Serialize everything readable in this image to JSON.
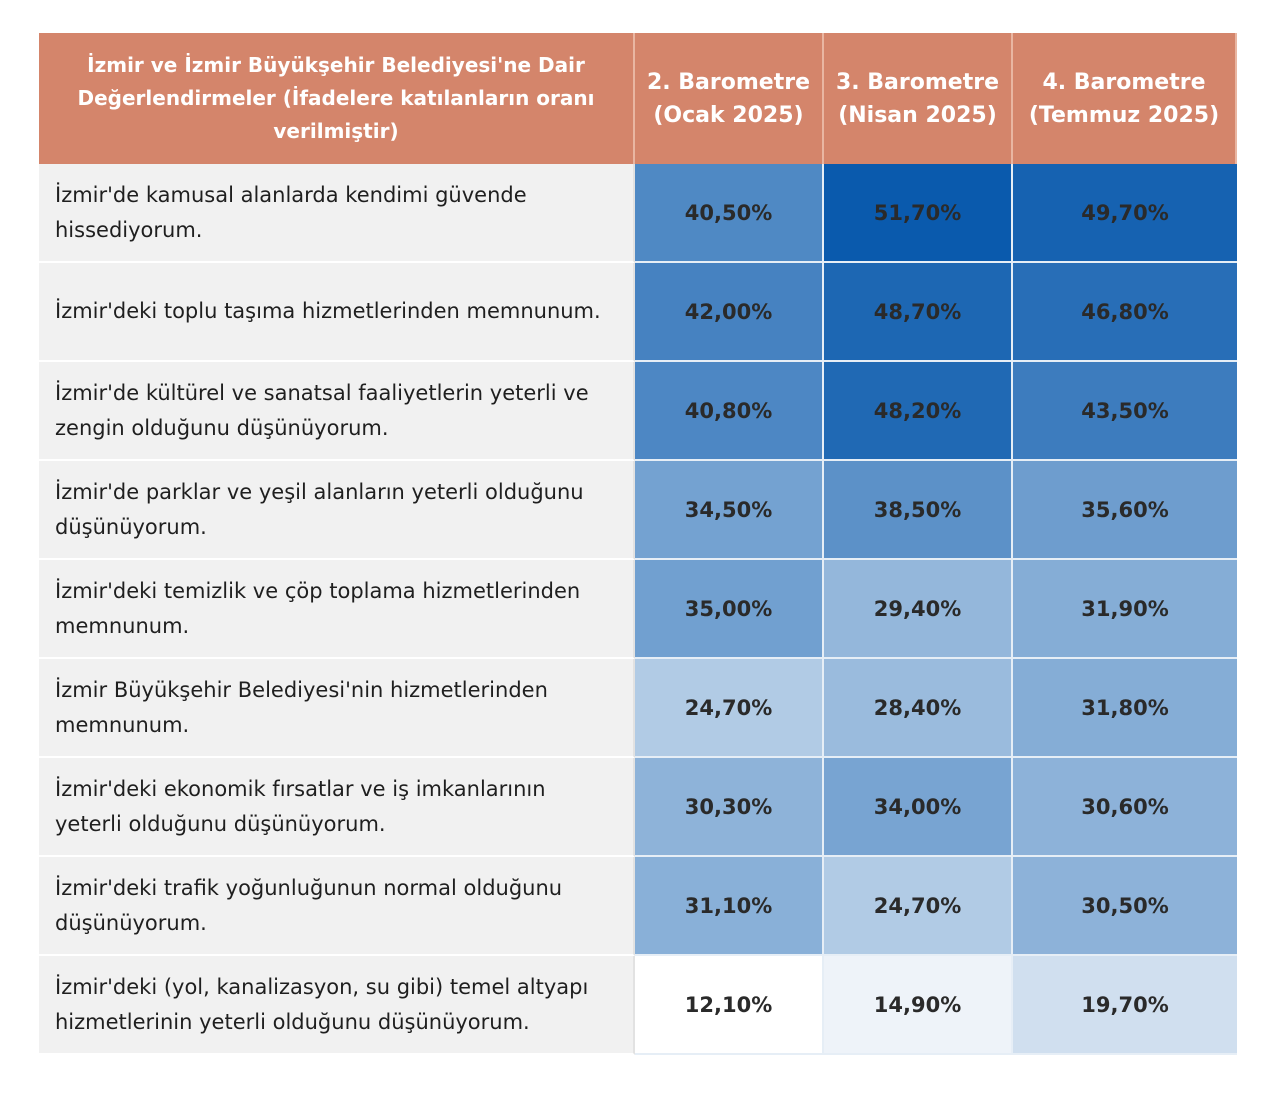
{
  "header": {
    "title": "İzmir ve İzmir Büyükşehir Belediyesi'ne Dair Değerlendirmeler (İfadelere katılanların oranı verilmiştir)",
    "col_2": "2. Barometre\n(Ocak 2025)",
    "col_3": "3. Barometre\n(Nisan 2025)",
    "col_4": "4. Barometre\n(Temmuz 2025)"
  },
  "rows": [
    {
      "statement": "İzmir'de kamusal alanlarda kendimi güvende hissediyorum.",
      "b2": "40,50%",
      "b3": "51,70%",
      "b4": "49,70%"
    },
    {
      "statement": "İzmir'deki toplu taşıma hizmetlerinden memnunum.",
      "b2": "42,00%",
      "b3": "48,70%",
      "b4": "46,80%"
    },
    {
      "statement": "İzmir'de kültürel ve sanatsal faaliyetlerin yeterli ve zengin olduğunu düşünüyorum.",
      "b2": "40,80%",
      "b3": "48,20%",
      "b4": "43,50%"
    },
    {
      "statement": "İzmir'de parklar ve yeşil alanların yeterli olduğunu düşünüyorum.",
      "b2": "34,50%",
      "b3": "38,50%",
      "b4": "35,60%"
    },
    {
      "statement": "İzmir'deki temizlik ve çöp toplama hizmetlerinden memnunum.",
      "b2": "35,00%",
      "b3": "29,40%",
      "b4": "31,90%"
    },
    {
      "statement": "İzmir Büyükşehir Belediyesi'nin hizmetlerinden memnunum.",
      "b2": "24,70%",
      "b3": "28,40%",
      "b4": "31,80%"
    },
    {
      "statement": "İzmir'deki ekonomik fırsatlar ve iş imkanlarının yeterli olduğunu düşünüyorum.",
      "b2": "30,30%",
      "b3": "34,00%",
      "b4": "30,60%"
    },
    {
      "statement": "İzmir'deki trafik yoğunluğunun normal olduğunu düşünüyorum.",
      "b2": "31,10%",
      "b3": "24,70%",
      "b4": "30,50%"
    },
    {
      "statement": "İzmir'deki (yol, kanalizasyon, su gibi) temel altyapı hizmetlerinin yeterli olduğunu düşünüyorum.",
      "b2": "12,10%",
      "b3": "14,90%",
      "b4": "19,70%"
    }
  ],
  "colors": {
    "header_bg": "#d4856b",
    "scale_low": "#ffffff",
    "scale_high": "#0a5aad"
  }
}
